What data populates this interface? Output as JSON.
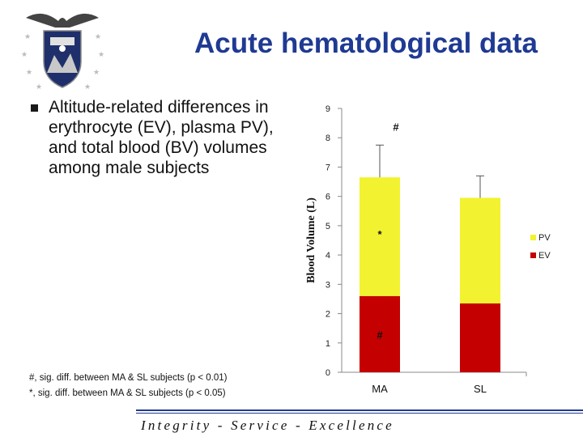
{
  "slide": {
    "title": "Acute hematological data",
    "bullet": "Altitude-related differences in erythrocyte (EV), plasma PV), and total blood (BV) volumes among male subjects",
    "notes": [
      "#, sig. diff. between MA & SL subjects (p < 0.01)",
      "*, sig. diff. between MA & SL subjects (p < 0.05)"
    ],
    "footer": "Integrity - Service - Excellence"
  },
  "colors": {
    "title": "#1f3a93",
    "pv": "#f2f230",
    "ev": "#c40000"
  },
  "chart_data": {
    "type": "bar",
    "stacked": true,
    "categories": [
      "MA",
      "SL"
    ],
    "series": [
      {
        "name": "EV",
        "values": [
          2.6,
          2.35
        ]
      },
      {
        "name": "PV",
        "values": [
          4.05,
          3.6
        ]
      }
    ],
    "totals": [
      6.65,
      5.95
    ],
    "error_upper": [
      7.75,
      6.7
    ],
    "annotations": [
      {
        "category": "MA",
        "text": "#",
        "y": 8.35
      },
      {
        "category": "MA",
        "text": "*",
        "y": 4.7
      },
      {
        "category": "MA",
        "text": "#",
        "y": 1.25
      }
    ],
    "ylabel": "Blood Volume (L)",
    "xlabel": "",
    "ylim": [
      0,
      9
    ],
    "yticks": [
      0,
      1,
      2,
      3,
      4,
      5,
      6,
      7,
      8,
      9
    ],
    "legend": [
      "PV",
      "EV"
    ],
    "legend_position": "right"
  }
}
